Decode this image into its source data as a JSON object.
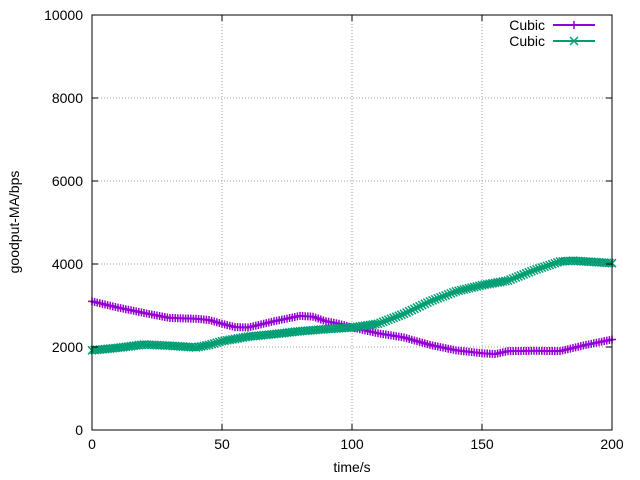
{
  "chart_data": {
    "type": "line",
    "title": "",
    "xlabel": "time/s",
    "ylabel": "goodput-MA/bps",
    "xlim": [
      0,
      200
    ],
    "ylim": [
      0,
      10000
    ],
    "xticks": [
      0,
      50,
      100,
      150,
      200
    ],
    "yticks": [
      0,
      2000,
      4000,
      6000,
      8000,
      10000
    ],
    "grid": true,
    "legend_position": "top-right",
    "series": [
      {
        "name": "Cubic",
        "color": "#9400d3",
        "marker": "plus",
        "x": [
          0,
          10,
          20,
          30,
          40,
          45,
          50,
          55,
          60,
          70,
          80,
          85,
          90,
          95,
          100,
          110,
          120,
          130,
          140,
          150,
          155,
          160,
          170,
          180,
          190,
          200
        ],
        "y": [
          3100,
          2950,
          2820,
          2700,
          2680,
          2650,
          2560,
          2480,
          2470,
          2620,
          2750,
          2730,
          2620,
          2560,
          2470,
          2330,
          2230,
          2050,
          1920,
          1850,
          1830,
          1900,
          1910,
          1900,
          2050,
          2180
        ]
      },
      {
        "name": "Cubic",
        "color": "#009e73",
        "marker": "cross",
        "x": [
          0,
          10,
          20,
          30,
          40,
          45,
          50,
          60,
          70,
          80,
          90,
          100,
          110,
          120,
          130,
          140,
          150,
          160,
          170,
          180,
          185,
          190,
          200
        ],
        "y": [
          1920,
          1980,
          2060,
          2030,
          1990,
          2050,
          2140,
          2250,
          2310,
          2380,
          2430,
          2470,
          2560,
          2800,
          3100,
          3340,
          3490,
          3600,
          3850,
          4060,
          4080,
          4060,
          4020
        ]
      }
    ]
  }
}
